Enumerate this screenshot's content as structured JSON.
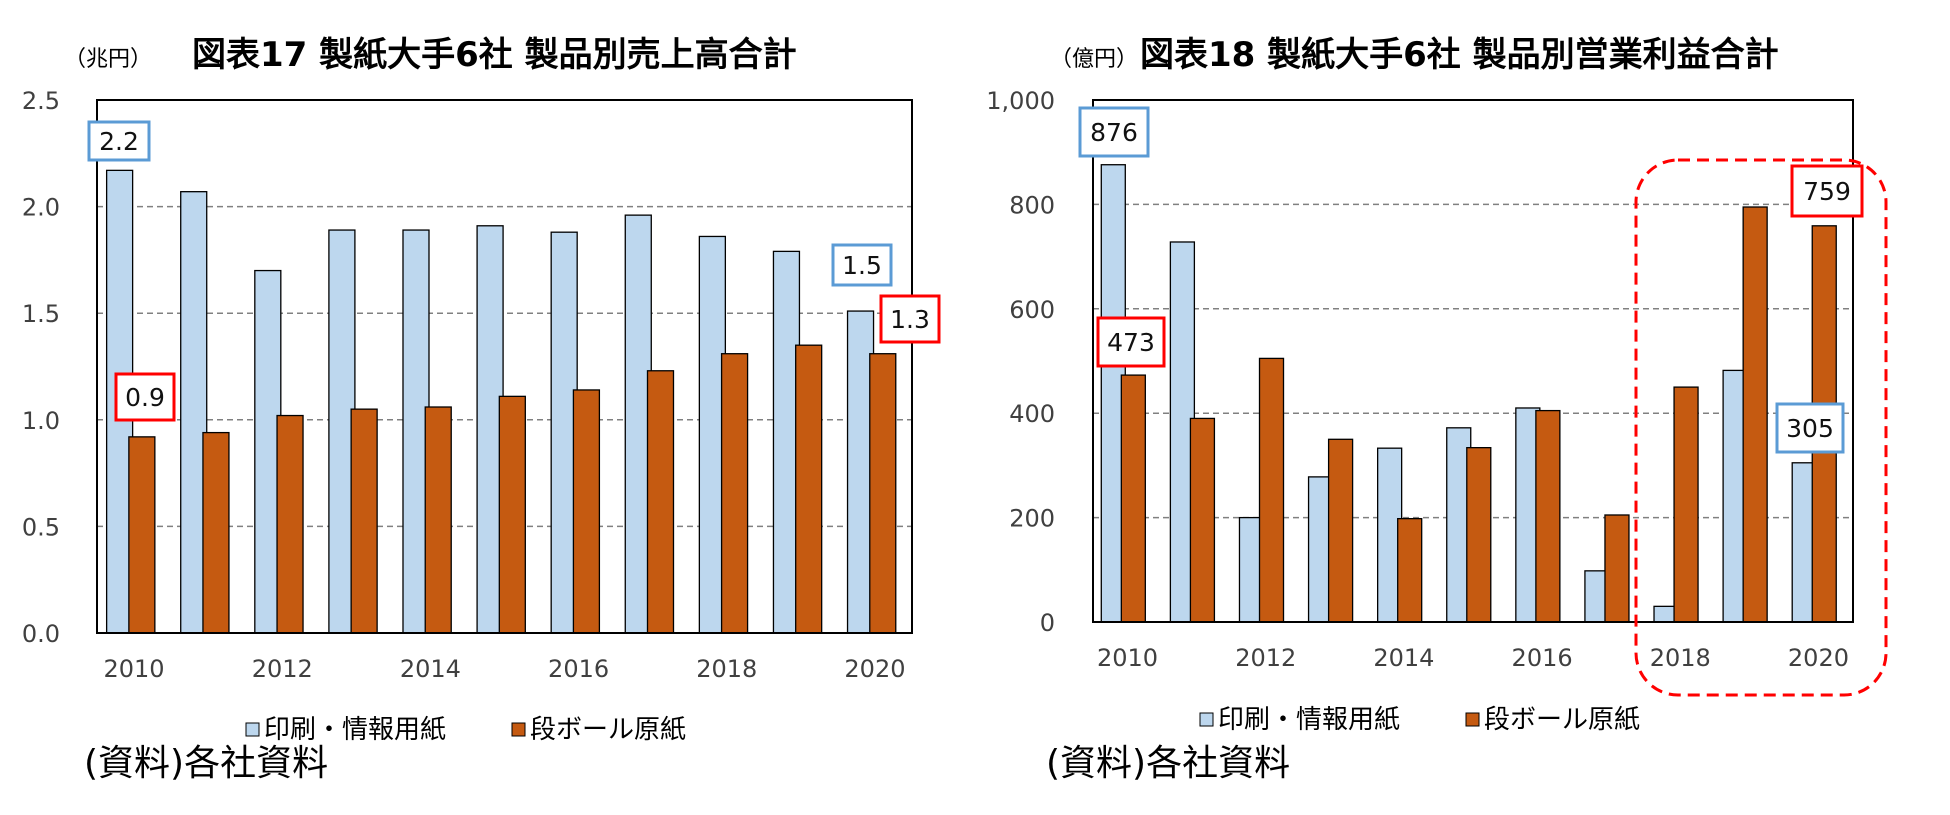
{
  "chart_data": [
    {
      "type": "bar",
      "figure": "図表17",
      "title": "図表17  製紙大手6社  製品別売上高合計",
      "unit_label": "（兆円）",
      "ylabel": "兆円",
      "ylim": [
        0,
        2.5
      ],
      "yticks": [
        "0.0",
        "0.5",
        "1.0",
        "1.5",
        "2.0",
        "2.5"
      ],
      "ytick_values": [
        0,
        0.5,
        1.0,
        1.5,
        2.0,
        2.5
      ],
      "categories": [
        "2010",
        "2011",
        "2012",
        "2013",
        "2014",
        "2015",
        "2016",
        "2017",
        "2018",
        "2019",
        "2020"
      ],
      "xtick_labels": [
        "2010",
        "",
        "2012",
        "",
        "2014",
        "",
        "2016",
        "",
        "2018",
        "",
        "2020"
      ],
      "series": [
        {
          "name": "印刷・情報用紙",
          "color": "#bdd7ee",
          "values": [
            2.17,
            2.07,
            1.7,
            1.89,
            1.89,
            1.91,
            1.88,
            1.96,
            1.86,
            1.79,
            1.51
          ]
        },
        {
          "name": "段ボール原紙",
          "color": "#c55a11",
          "values": [
            0.92,
            0.94,
            1.02,
            1.05,
            1.06,
            1.11,
            1.14,
            1.23,
            1.31,
            1.35,
            1.31
          ]
        }
      ],
      "annotations": [
        {
          "text": "2.2",
          "color": "#5b9bd5"
        },
        {
          "text": "0.9",
          "color": "#ff0000"
        },
        {
          "text": "1.5",
          "color": "#5b9bd5"
        },
        {
          "text": "1.3",
          "color": "#ff0000"
        }
      ],
      "legend_position": "bottom",
      "grid": true,
      "source": "(資料)各社資料"
    },
    {
      "type": "bar",
      "figure": "図表18",
      "title": "図表18  製紙大手6社  製品別営業利益合計",
      "unit_label": "（億円）",
      "ylabel": "億円",
      "ylim": [
        0,
        1000
      ],
      "yticks": [
        "0",
        "200",
        "400",
        "600",
        "800",
        "1,000"
      ],
      "ytick_values": [
        0,
        200,
        400,
        600,
        800,
        1000
      ],
      "categories": [
        "2010",
        "2011",
        "2012",
        "2013",
        "2014",
        "2015",
        "2016",
        "2017",
        "2018",
        "2019",
        "2020"
      ],
      "xtick_labels": [
        "2010",
        "",
        "2012",
        "",
        "2014",
        "",
        "2016",
        "",
        "2018",
        "",
        "2020"
      ],
      "series": [
        {
          "name": "印刷・情報用紙",
          "color": "#bdd7ee",
          "values": [
            876,
            728,
            200,
            278,
            333,
            372,
            410,
            98,
            30,
            482,
            305
          ]
        },
        {
          "name": "段ボール原紙",
          "color": "#c55a11",
          "values": [
            473,
            390,
            505,
            350,
            198,
            334,
            405,
            205,
            450,
            795,
            759
          ]
        }
      ],
      "annotations": [
        {
          "text": "876",
          "color": "#5b9bd5"
        },
        {
          "text": "473",
          "color": "#ff0000"
        },
        {
          "text": "759",
          "color": "#ff0000"
        },
        {
          "text": "305",
          "color": "#5b9bd5"
        }
      ],
      "highlight": {
        "from": "2018",
        "to": "2020",
        "color": "#ff0000"
      },
      "legend_position": "bottom",
      "grid": true,
      "source": "(資料)各社資料"
    }
  ]
}
